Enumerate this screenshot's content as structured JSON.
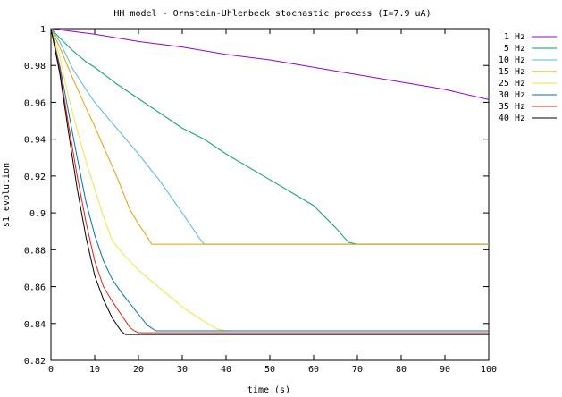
{
  "chart_data": {
    "type": "line",
    "title": "HH model - Ornstein-Uhlenbeck stochastic process (I=7.9 uA)",
    "xlabel": "time (s)",
    "ylabel": "s1 evolution",
    "xlim": [
      0,
      100
    ],
    "ylim": [
      0.82,
      1.0
    ],
    "x_ticks": [
      0,
      10,
      20,
      30,
      40,
      50,
      60,
      70,
      80,
      90,
      100
    ],
    "y_ticks": [
      0.82,
      0.84,
      0.86,
      0.88,
      0.9,
      0.92,
      0.94,
      0.96,
      0.98,
      1.0
    ],
    "x_tick_labels": [
      "0",
      "10",
      "20",
      "30",
      "40",
      "50",
      "60",
      "70",
      "80",
      "90",
      "100"
    ],
    "y_tick_labels": [
      "0.82",
      "0.84",
      "0.86",
      "0.88",
      "0.9",
      "0.92",
      "0.94",
      "0.96",
      "0.98",
      "1"
    ],
    "grid": false,
    "legend_position": "outside-right-top",
    "series": [
      {
        "name": "1 Hz",
        "color": "#9400d3",
        "x": [
          0,
          5,
          10,
          20,
          30,
          40,
          50,
          60,
          70,
          80,
          90,
          100
        ],
        "y": [
          1.0,
          0.9985,
          0.997,
          0.993,
          0.99,
          0.986,
          0.983,
          0.979,
          0.975,
          0.971,
          0.967,
          0.9615
        ]
      },
      {
        "name": "5 Hz",
        "color": "#009e73",
        "x": [
          0,
          2,
          5,
          8,
          10,
          15,
          20,
          25,
          30,
          35,
          40,
          45,
          50,
          55,
          60,
          65,
          68,
          70,
          80,
          90,
          100
        ],
        "y": [
          1.0,
          0.995,
          0.988,
          0.982,
          0.979,
          0.97,
          0.962,
          0.954,
          0.946,
          0.94,
          0.932,
          0.925,
          0.918,
          0.911,
          0.904,
          0.892,
          0.884,
          0.883,
          0.883,
          0.883,
          0.883
        ]
      },
      {
        "name": "10 Hz",
        "color": "#56b4e9",
        "x": [
          0,
          2,
          5,
          8,
          10,
          15,
          20,
          25,
          30,
          34,
          35,
          40,
          50,
          100
        ],
        "y": [
          1.0,
          0.993,
          0.978,
          0.967,
          0.96,
          0.946,
          0.932,
          0.917,
          0.9,
          0.886,
          0.883,
          0.883,
          0.883,
          0.883
        ]
      },
      {
        "name": "15 Hz",
        "color": "#e69f00",
        "x": [
          0,
          2,
          5,
          8,
          10,
          12,
          15,
          18,
          20,
          22,
          23,
          25,
          30,
          40,
          50,
          60,
          70,
          80,
          90,
          100
        ],
        "y": [
          1.0,
          0.99,
          0.973,
          0.957,
          0.947,
          0.936,
          0.92,
          0.902,
          0.894,
          0.887,
          0.883,
          0.883,
          0.883,
          0.883,
          0.883,
          0.883,
          0.883,
          0.883,
          0.883,
          0.883
        ]
      },
      {
        "name": "25 Hz",
        "color": "#f0e442",
        "x": [
          0,
          2,
          4,
          6,
          8,
          10,
          12,
          14,
          16,
          18,
          20,
          25,
          30,
          35,
          38,
          40,
          50,
          60,
          70,
          80,
          90,
          100
        ],
        "y": [
          1.0,
          0.985,
          0.963,
          0.945,
          0.928,
          0.913,
          0.898,
          0.885,
          0.879,
          0.874,
          0.869,
          0.859,
          0.849,
          0.841,
          0.837,
          0.836,
          0.836,
          0.836,
          0.836,
          0.836,
          0.836,
          0.836
        ]
      },
      {
        "name": "30 Hz",
        "color": "#0072b2",
        "x": [
          0,
          2,
          4,
          6,
          8,
          10,
          12,
          14,
          16,
          18,
          20,
          22,
          24,
          30,
          40,
          50,
          60,
          70,
          80,
          90,
          100
        ],
        "y": [
          1.0,
          0.98,
          0.955,
          0.93,
          0.906,
          0.888,
          0.874,
          0.864,
          0.857,
          0.851,
          0.845,
          0.839,
          0.836,
          0.836,
          0.836,
          0.836,
          0.836,
          0.836,
          0.836,
          0.836,
          0.836
        ]
      },
      {
        "name": "35 Hz",
        "color": "#e51e10",
        "x": [
          0,
          2,
          4,
          6,
          8,
          10,
          12,
          14,
          16,
          18,
          19,
          20,
          30,
          40,
          50,
          60,
          70,
          80,
          90,
          100
        ],
        "y": [
          1.0,
          0.978,
          0.948,
          0.92,
          0.895,
          0.874,
          0.86,
          0.852,
          0.845,
          0.838,
          0.836,
          0.835,
          0.835,
          0.835,
          0.835,
          0.835,
          0.835,
          0.835,
          0.835,
          0.835
        ]
      },
      {
        "name": "40 Hz",
        "color": "#000000",
        "x": [
          0,
          2,
          4,
          6,
          8,
          10,
          12,
          14,
          16,
          17,
          20,
          30,
          40,
          50,
          60,
          70,
          80,
          90,
          100
        ],
        "y": [
          1.0,
          0.976,
          0.944,
          0.913,
          0.887,
          0.866,
          0.853,
          0.843,
          0.836,
          0.834,
          0.834,
          0.834,
          0.834,
          0.834,
          0.834,
          0.834,
          0.834,
          0.834,
          0.834
        ]
      }
    ]
  }
}
